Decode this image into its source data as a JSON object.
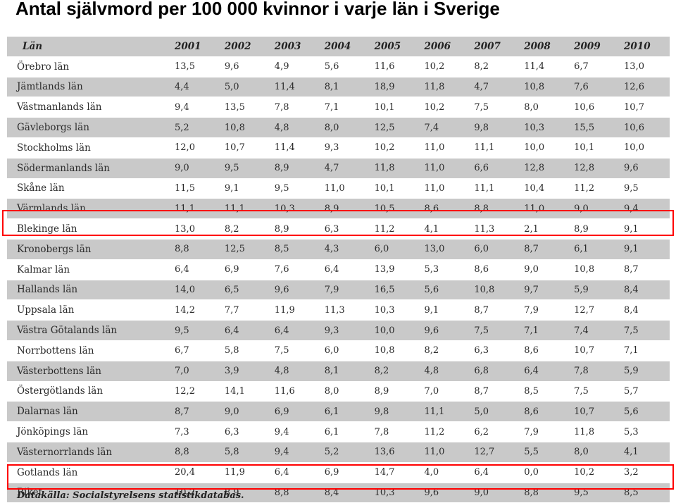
{
  "title": "Antal självmord per 100 000 kvinnor i varje län i Sverige",
  "table": {
    "headers": [
      "Län",
      "2001",
      "2002",
      "2003",
      "2004",
      "2005",
      "2006",
      "2007",
      "2008",
      "2009",
      "2010"
    ],
    "rows": [
      {
        "lan": "Örebro län",
        "values": [
          "13,5",
          "9,6",
          "4,9",
          "5,6",
          "11,6",
          "10,2",
          "8,2",
          "11,4",
          "6,7",
          "13,0"
        ]
      },
      {
        "lan": "Jämtlands län",
        "values": [
          "4,4",
          "5,0",
          "11,4",
          "8,1",
          "18,9",
          "11,8",
          "4,7",
          "10,8",
          "7,6",
          "12,6"
        ]
      },
      {
        "lan": "Västmanlands län",
        "values": [
          "9,4",
          "13,5",
          "7,8",
          "7,1",
          "10,1",
          "10,2",
          "7,5",
          "8,0",
          "10,6",
          "10,7"
        ]
      },
      {
        "lan": "Gävleborgs län",
        "values": [
          "5,2",
          "10,8",
          "4,8",
          "8,0",
          "12,5",
          "7,4",
          "9,8",
          "10,3",
          "15,5",
          "10,6"
        ]
      },
      {
        "lan": "Stockholms län",
        "values": [
          "12,0",
          "10,7",
          "11,4",
          "9,3",
          "10,2",
          "11,0",
          "11,1",
          "10,0",
          "10,1",
          "10,0"
        ]
      },
      {
        "lan": "Södermanlands län",
        "values": [
          "9,0",
          "9,5",
          "8,9",
          "4,7",
          "11,8",
          "11,0",
          "6,6",
          "12,8",
          "12,8",
          "9,6"
        ]
      },
      {
        "lan": "Skåne län",
        "values": [
          "11,5",
          "9,1",
          "9,5",
          "11,0",
          "10,1",
          "11,0",
          "11,1",
          "10,4",
          "11,2",
          "9,5"
        ]
      },
      {
        "lan": "Värmlands län",
        "values": [
          "11,1",
          "11,1",
          "10,3",
          "8,9",
          "10,5",
          "8,6",
          "8,8",
          "11,0",
          "9,0",
          "9,4"
        ]
      },
      {
        "lan": "Blekinge län",
        "values": [
          "13,0",
          "8,2",
          "8,9",
          "6,3",
          "11,2",
          "4,1",
          "11,3",
          "2,1",
          "8,9",
          "9,1"
        ]
      },
      {
        "lan": "Kronobergs län",
        "values": [
          "8,8",
          "12,5",
          "8,5",
          "4,3",
          "6,0",
          "13,0",
          "6,0",
          "8,7",
          "6,1",
          "9,1"
        ]
      },
      {
        "lan": "Kalmar län",
        "values": [
          "6,4",
          "6,9",
          "7,6",
          "6,4",
          "13,9",
          "5,3",
          "8,6",
          "9,0",
          "10,8",
          "8,7"
        ]
      },
      {
        "lan": "Hallands län",
        "values": [
          "14,0",
          "6,5",
          "9,6",
          "7,9",
          "16,5",
          "5,6",
          "10,8",
          "9,7",
          "5,9",
          "8,4"
        ]
      },
      {
        "lan": "Uppsala län",
        "values": [
          "14,2",
          "7,7",
          "11,9",
          "11,3",
          "10,3",
          "9,1",
          "8,7",
          "7,9",
          "12,7",
          "8,4"
        ]
      },
      {
        "lan": "Västra Götalands län",
        "values": [
          "9,5",
          "6,4",
          "6,4",
          "9,3",
          "10,0",
          "9,6",
          "7,5",
          "7,1",
          "7,4",
          "7,5"
        ]
      },
      {
        "lan": "Norrbottens län",
        "values": [
          "6,7",
          "5,8",
          "7,5",
          "6,0",
          "10,8",
          "8,2",
          "6,3",
          "8,6",
          "10,7",
          "7,1"
        ]
      },
      {
        "lan": "Västerbottens län",
        "values": [
          "7,0",
          "3,9",
          "4,8",
          "8,1",
          "8,2",
          "4,8",
          "6,8",
          "6,4",
          "7,8",
          "5,9"
        ]
      },
      {
        "lan": "Östergötlands län",
        "values": [
          "12,2",
          "14,1",
          "11,6",
          "8,0",
          "8,9",
          "7,0",
          "8,7",
          "8,5",
          "7,5",
          "5,7"
        ]
      },
      {
        "lan": "Dalarnas län",
        "values": [
          "8,7",
          "9,0",
          "6,9",
          "6,1",
          "9,8",
          "11,1",
          "5,0",
          "8,6",
          "10,7",
          "5,6"
        ]
      },
      {
        "lan": "Jönköpings län",
        "values": [
          "7,3",
          "6,3",
          "9,4",
          "6,1",
          "7,8",
          "11,2",
          "6,2",
          "7,9",
          "11,8",
          "5,3"
        ]
      },
      {
        "lan": "Västernorrlands län",
        "values": [
          "8,8",
          "5,8",
          "9,4",
          "5,2",
          "13,6",
          "11,0",
          "12,7",
          "5,5",
          "8,0",
          "4,1"
        ]
      },
      {
        "lan": "Gotlands län",
        "values": [
          "20,4",
          "11,9",
          "6,4",
          "6,9",
          "14,7",
          "4,0",
          "6,4",
          "0,0",
          "10,2",
          "3,2"
        ]
      },
      {
        "lan": "Riket",
        "values": [
          "10,2",
          "8,9",
          "8,8",
          "8,4",
          "10,3",
          "9,6",
          "9,0",
          "8,8",
          "9,5",
          "8,5"
        ]
      }
    ]
  },
  "source_note": "Datakälla: Socialstyrelsens statistikdatabas.",
  "colors": {
    "row_shade": "#c9c9c9",
    "highlight": "#ff0000"
  }
}
